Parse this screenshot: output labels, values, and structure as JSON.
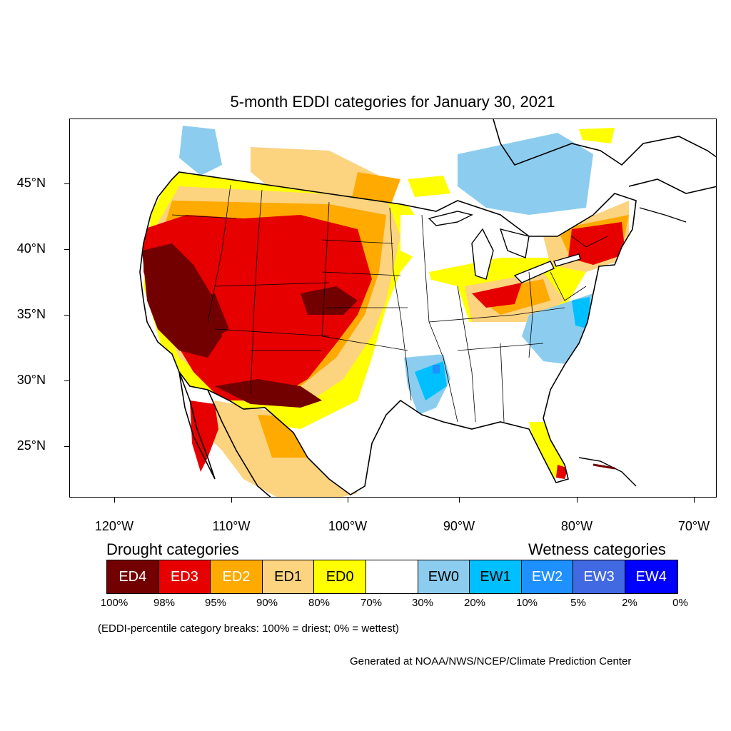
{
  "title": "5-month EDDI categories for January 30, 2021",
  "axes": {
    "lat_labels": [
      "45°N",
      "40°N",
      "35°N",
      "30°N",
      "25°N"
    ],
    "lon_labels": [
      "120°W",
      "110°W",
      "100°W",
      "90°W",
      "80°W",
      "70°W"
    ]
  },
  "legend": {
    "drought_heading": "Drought categories",
    "wetness_heading": "Wetness categories",
    "categories": [
      {
        "label": "ED4",
        "color": "#730000"
      },
      {
        "label": "ED3",
        "color": "#e60000"
      },
      {
        "label": "ED2",
        "color": "#ffaa00"
      },
      {
        "label": "ED1",
        "color": "#fcd37f"
      },
      {
        "label": "ED0",
        "color": "#ffff00"
      },
      {
        "label": "",
        "color": "#ffffff"
      },
      {
        "label": "EW0",
        "color": "#8ccdef"
      },
      {
        "label": "EW1",
        "color": "#00bfff"
      },
      {
        "label": "EW2",
        "color": "#1e90ff"
      },
      {
        "label": "EW3",
        "color": "#4169e1"
      },
      {
        "label": "EW4",
        "color": "#0000ff"
      }
    ],
    "breaks": [
      "100%",
      "98%",
      "95%",
      "90%",
      "80%",
      "70%",
      "30%",
      "20%",
      "10%",
      "5%",
      "2%",
      "0%"
    ]
  },
  "note": "(EDDI-percentile category breaks: 100% = driest; 0% = wettest)",
  "credit": "Generated at NOAA/NWS/NCEP/Climate Prediction Center"
}
